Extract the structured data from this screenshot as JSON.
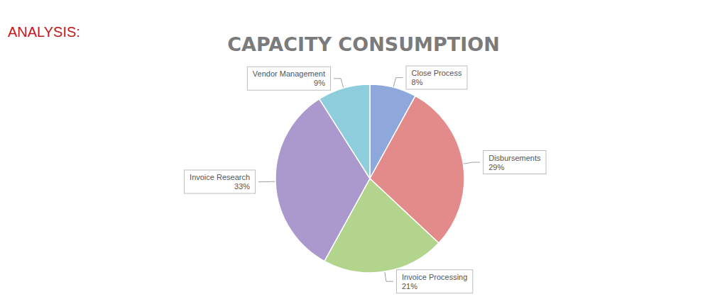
{
  "chart_data": {
    "type": "pie",
    "title": "CAPACITY CONSUMPTION",
    "subtitle": "ANALYSIS:",
    "categories": [
      "Close Process",
      "Disbursements",
      "Invoice Processing",
      "Invoice Research",
      "Vendor Management"
    ],
    "values": [
      8,
      29,
      21,
      33,
      9
    ],
    "value_labels": [
      "8%",
      "29%",
      "21%",
      "33%",
      "9%"
    ],
    "colors": [
      "#8fa8dc",
      "#e38a8a",
      "#b3d48d",
      "#ab98cc",
      "#8dcddc"
    ],
    "data_labels": true
  }
}
